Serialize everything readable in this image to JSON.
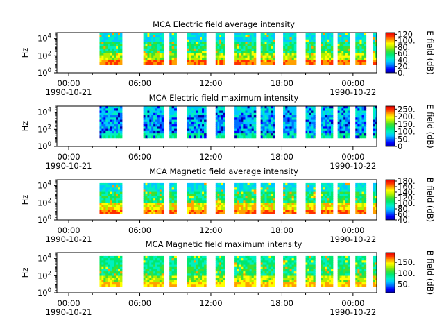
{
  "figure": {
    "colors": {
      "axis": "#000000",
      "background": "#ffffff",
      "colormap": [
        "#0000a8",
        "#0000ff",
        "#0070ff",
        "#00c8ff",
        "#00f0c0",
        "#00e870",
        "#40e030",
        "#b0f000",
        "#ffff00",
        "#ffa000",
        "#ff3000",
        "#e00000"
      ]
    }
  },
  "chart_data": [
    {
      "type": "heatmap",
      "title": "MCA  Electric field average intensity",
      "ylabel": "Hz",
      "colorbar_label": "E field (dB)",
      "y_scale": "log",
      "y_ticks": [
        {
          "base": "10",
          "exp": "0",
          "value": 1
        },
        {
          "base": "10",
          "exp": "2",
          "value": 100
        },
        {
          "base": "10",
          "exp": "4",
          "value": 10000
        }
      ],
      "ylim": [
        1,
        50000
      ],
      "x_ticks": [
        {
          "label": "00:00",
          "date": "1990-10-21",
          "hour": 0
        },
        {
          "label": "06:00",
          "date": "",
          "hour": 6
        },
        {
          "label": "12:00",
          "date": "",
          "hour": 12
        },
        {
          "label": "18:00",
          "date": "",
          "hour": 18
        },
        {
          "label": "00:00",
          "date": "1990-10-22",
          "hour": 24
        }
      ],
      "xlim_hours": [
        -1,
        26
      ],
      "colorbar_ticks": [
        "0.",
        "20.",
        "40.",
        "60.",
        "80.",
        "100.",
        "120"
      ],
      "colorbar_range": [
        0,
        125
      ],
      "freq_range": [
        10,
        50000
      ],
      "data_intervals_hours": [
        [
          2.6,
          4.5
        ],
        [
          6.3,
          8.0
        ],
        [
          8.5,
          9.1
        ],
        [
          10.0,
          11.6
        ],
        [
          12.4,
          13.2
        ],
        [
          14.0,
          15.8
        ],
        [
          16.2,
          17.4
        ],
        [
          18.1,
          19.2
        ],
        [
          20.0,
          20.8
        ],
        [
          21.3,
          22.3
        ],
        [
          22.7,
          23.7
        ],
        [
          24.2,
          25.1
        ],
        [
          25.7,
          26.6
        ]
      ]
    },
    {
      "type": "heatmap",
      "title": "MCA  Electric field maximum intensity",
      "ylabel": "Hz",
      "colorbar_label": "E field (dB)",
      "y_scale": "log",
      "y_ticks": [
        {
          "base": "10",
          "exp": "0",
          "value": 1
        },
        {
          "base": "10",
          "exp": "2",
          "value": 100
        },
        {
          "base": "10",
          "exp": "4",
          "value": 10000
        }
      ],
      "ylim": [
        1,
        50000
      ],
      "x_ticks": [
        {
          "label": "00:00",
          "date": "1990-10-21",
          "hour": 0
        },
        {
          "label": "06:00",
          "date": "",
          "hour": 6
        },
        {
          "label": "12:00",
          "date": "",
          "hour": 12
        },
        {
          "label": "18:00",
          "date": "",
          "hour": 18
        },
        {
          "label": "00:00",
          "date": "1990-10-22",
          "hour": 24
        }
      ],
      "xlim_hours": [
        -1,
        26
      ],
      "colorbar_ticks": [
        "0",
        "50.",
        "100.",
        "150.",
        "200.",
        "250."
      ],
      "colorbar_range": [
        0,
        270
      ],
      "freq_range": [
        10,
        50000
      ],
      "data_intervals_hours": [
        [
          2.6,
          4.5
        ],
        [
          6.3,
          8.0
        ],
        [
          8.5,
          9.1
        ],
        [
          10.0,
          11.6
        ],
        [
          12.4,
          13.2
        ],
        [
          14.0,
          15.8
        ],
        [
          16.2,
          17.4
        ],
        [
          18.1,
          19.2
        ],
        [
          20.0,
          20.8
        ],
        [
          21.3,
          22.3
        ],
        [
          22.7,
          23.7
        ],
        [
          24.2,
          25.1
        ],
        [
          25.7,
          26.6
        ]
      ]
    },
    {
      "type": "heatmap",
      "title": "MCA  Magnetic field average intensity",
      "ylabel": "Hz",
      "colorbar_label": "B field (dB)",
      "y_scale": "log",
      "y_ticks": [
        {
          "base": "10",
          "exp": "0",
          "value": 1
        },
        {
          "base": "10",
          "exp": "2",
          "value": 100
        },
        {
          "base": "10",
          "exp": "4",
          "value": 10000
        }
      ],
      "ylim": [
        1,
        50000
      ],
      "x_ticks": [
        {
          "label": "00:00",
          "date": "1990-10-21",
          "hour": 0
        },
        {
          "label": "06:00",
          "date": "",
          "hour": 6
        },
        {
          "label": "12:00",
          "date": "",
          "hour": 12
        },
        {
          "label": "18:00",
          "date": "",
          "hour": 18
        },
        {
          "label": "00:00",
          "date": "1990-10-22",
          "hour": 24
        }
      ],
      "xlim_hours": [
        -1,
        26
      ],
      "colorbar_ticks": [
        "40.",
        "60.",
        "80.",
        "100.",
        "120.",
        "140.",
        "160.",
        "180."
      ],
      "colorbar_range": [
        40,
        185
      ],
      "freq_range": [
        5,
        20000
      ],
      "data_intervals_hours": [
        [
          2.6,
          4.5
        ],
        [
          6.3,
          8.0
        ],
        [
          8.5,
          9.1
        ],
        [
          10.0,
          11.6
        ],
        [
          12.4,
          13.2
        ],
        [
          14.0,
          15.8
        ],
        [
          16.2,
          17.4
        ],
        [
          18.1,
          19.2
        ],
        [
          20.0,
          20.8
        ],
        [
          21.3,
          22.3
        ],
        [
          22.7,
          23.7
        ],
        [
          24.2,
          25.1
        ],
        [
          25.7,
          26.6
        ]
      ]
    },
    {
      "type": "heatmap",
      "title": "MCA  Magnetic field maximum intensity",
      "ylabel": "Hz",
      "colorbar_label": "B field (dB)",
      "y_scale": "log",
      "y_ticks": [
        {
          "base": "10",
          "exp": "0",
          "value": 1
        },
        {
          "base": "10",
          "exp": "2",
          "value": 100
        },
        {
          "base": "10",
          "exp": "4",
          "value": 10000
        }
      ],
      "ylim": [
        1,
        50000
      ],
      "x_ticks": [
        {
          "label": "00:00",
          "date": "1990-10-21",
          "hour": 0
        },
        {
          "label": "06:00",
          "date": "",
          "hour": 6
        },
        {
          "label": "12:00",
          "date": "",
          "hour": 12
        },
        {
          "label": "18:00",
          "date": "",
          "hour": 18
        },
        {
          "label": "00:00",
          "date": "1990-10-22",
          "hour": 24
        }
      ],
      "xlim_hours": [
        -1,
        26
      ],
      "colorbar_ticks": [
        "50.",
        "100.",
        "150."
      ],
      "colorbar_range": [
        10,
        195
      ],
      "freq_range": [
        5,
        20000
      ],
      "data_intervals_hours": [
        [
          2.6,
          4.5
        ],
        [
          6.3,
          8.0
        ],
        [
          8.5,
          9.1
        ],
        [
          10.0,
          11.6
        ],
        [
          12.4,
          13.2
        ],
        [
          14.0,
          15.8
        ],
        [
          16.2,
          17.4
        ],
        [
          18.1,
          19.2
        ],
        [
          20.0,
          20.8
        ],
        [
          21.3,
          22.3
        ],
        [
          22.7,
          23.7
        ],
        [
          24.2,
          25.1
        ],
        [
          25.7,
          26.6
        ]
      ]
    }
  ]
}
